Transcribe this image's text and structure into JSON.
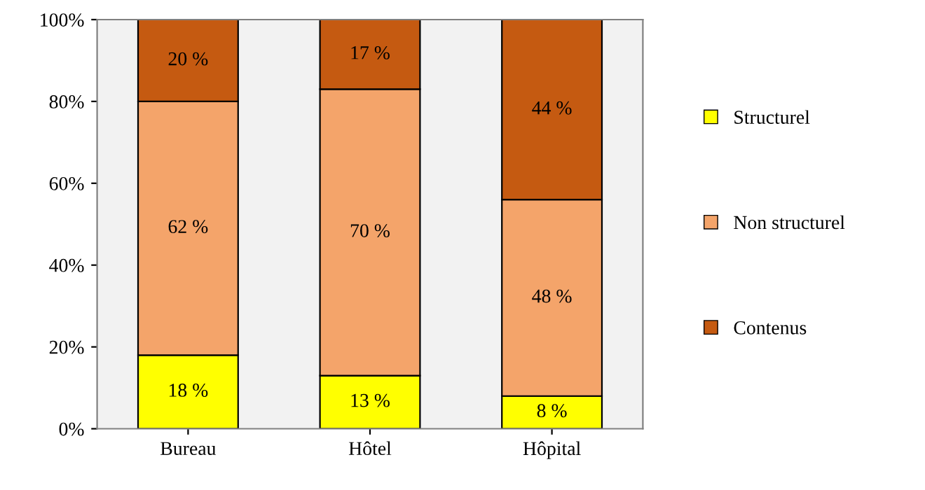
{
  "chart_data": {
    "type": "bar",
    "stacked": true,
    "categories": [
      "Bureau",
      "Hôtel",
      "Hôpital"
    ],
    "series": [
      {
        "name": "Structurel",
        "color": "#ffff00",
        "values": [
          18,
          13,
          8
        ],
        "value_labels": [
          "18 %",
          "13 %",
          "8 %"
        ]
      },
      {
        "name": "Non structurel",
        "color": "#f4a46a",
        "values": [
          62,
          70,
          48
        ],
        "value_labels": [
          "62 %",
          "70 %",
          "48 %"
        ]
      },
      {
        "name": "Contenus",
        "color": "#c55a11",
        "values": [
          20,
          17,
          44
        ],
        "value_labels": [
          "20 %",
          "17 %",
          "44 %"
        ]
      }
    ],
    "ylim": [
      0,
      100
    ],
    "yticks": [
      {
        "value": 0,
        "label": "0%"
      },
      {
        "value": 20,
        "label": "20%"
      },
      {
        "value": 40,
        "label": "40%"
      },
      {
        "value": 60,
        "label": "60%"
      },
      {
        "value": 80,
        "label": "80%"
      },
      {
        "value": 100,
        "label": "100%"
      }
    ],
    "grid": false,
    "legend": "right"
  }
}
